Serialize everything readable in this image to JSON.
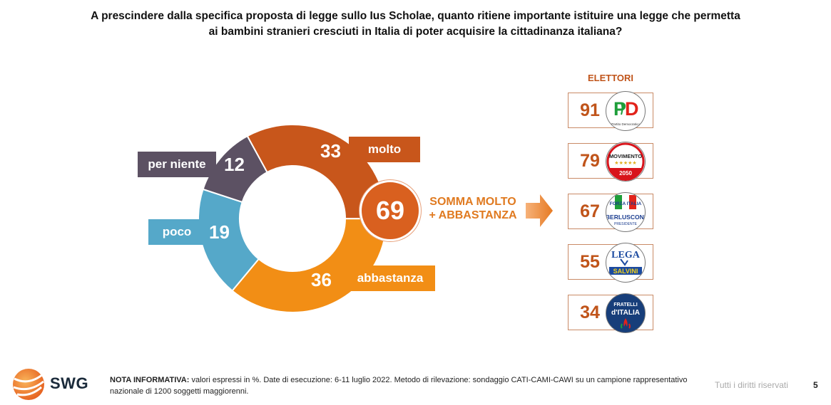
{
  "title_line1": "A prescindere dalla specifica proposta di legge sullo Ius Scholae, quanto ritiene importante istituire una legge che permetta",
  "title_line2": "ai bambini stranieri cresciuti in Italia di poter acquisire la cittadinanza italiana?",
  "chart_data": {
    "type": "pie",
    "subtype": "donut",
    "slices": [
      {
        "label": "molto",
        "value": 33,
        "color": "#c8561b"
      },
      {
        "label": "abbastanza",
        "value": 36,
        "color": "#f28e15"
      },
      {
        "label": "poco",
        "value": 19,
        "color": "#55a8c9"
      },
      {
        "label": "per niente",
        "value": 12,
        "color": "#5c5163"
      }
    ],
    "sum": {
      "value": "69",
      "label_line1": "SOMMA MOLTO",
      "label_line2": "+ ABBASTANZA"
    },
    "electors": {
      "title": "ELETTORI",
      "parties": [
        {
          "logo": "pd-logo",
          "logo_text": "Partito Democratico",
          "value": "91"
        },
        {
          "logo": "m5s-logo",
          "logo_text": "MOVIMENTO",
          "logo_year": "2050",
          "value": "79"
        },
        {
          "logo": "forza-italia-logo",
          "logo_text": "FORZA ITALIA",
          "logo_sub": "BERLUSCONI",
          "logo_sub2": "PRESIDENTE",
          "value": "67"
        },
        {
          "logo": "lega-logo",
          "logo_text": "LEGA",
          "logo_sub": "SALVINI",
          "value": "55"
        },
        {
          "logo": "fdi-logo",
          "logo_text": "FRATELLI",
          "logo_sub": "d'ITALIA",
          "value": "34"
        }
      ]
    }
  },
  "footer": {
    "note_label": "NOTA INFORMATIVA:",
    "note_text": "valori espressi in %. Date di esecuzione: 6-11 luglio 2022. Metodo di rilevazione: sondaggio CATI-CAMI-CAWI su un campione rappresentativo nazionale di 1200 soggetti maggiorenni.",
    "brand": "SWG",
    "rights": "Tutti i diritti riservati",
    "page": "5"
  }
}
